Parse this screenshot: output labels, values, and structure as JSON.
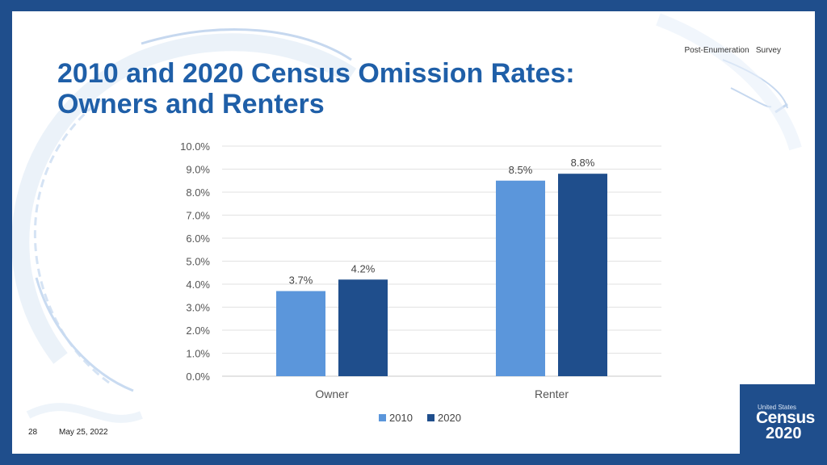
{
  "slide": {
    "top_label": "Post-Enumeration   Survey",
    "title_line1": "2010 and 2020 Census Omission Rates:",
    "title_line2": "Owners and Renters",
    "page_number": "28",
    "date": "May 25, 2022"
  },
  "logo": {
    "line1": "United States",
    "line2": "Census",
    "line3": "2020"
  },
  "chart_data": {
    "type": "bar",
    "categories": [
      "Owner",
      "Renter"
    ],
    "series": [
      {
        "name": "2010",
        "values": [
          3.7,
          8.5
        ],
        "labels": [
          "3.7%",
          "8.5%"
        ],
        "color": "#5b96db"
      },
      {
        "name": "2020",
        "values": [
          4.2,
          8.8
        ],
        "labels": [
          "4.2%",
          "8.8%"
        ],
        "color": "#1f4e8c"
      }
    ],
    "yticks": [
      0,
      1,
      2,
      3,
      4,
      5,
      6,
      7,
      8,
      9,
      10
    ],
    "ytick_labels": [
      "0.0%",
      "1.0%",
      "2.0%",
      "3.0%",
      "4.0%",
      "5.0%",
      "6.0%",
      "7.0%",
      "8.0%",
      "9.0%",
      "10.0%"
    ],
    "ylim": [
      0,
      10
    ],
    "grid": true,
    "legend": "bottom",
    "title": "",
    "xlabel": "",
    "ylabel": ""
  }
}
